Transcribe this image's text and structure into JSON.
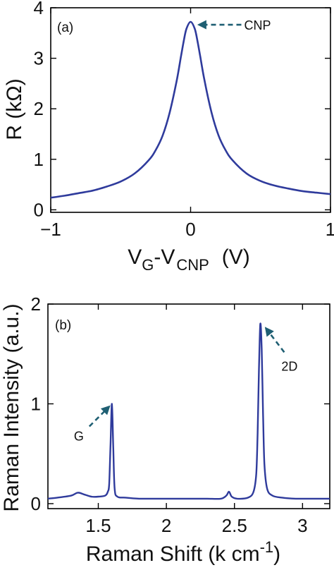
{
  "colors": {
    "series": "#2f3b9c",
    "arrow": "#1f5f73",
    "axis": "#000000"
  },
  "chart_data": [
    {
      "type": "line",
      "panel_label": "(a)",
      "xlabel_parts": [
        "V",
        "G",
        "-V",
        "CNP",
        "(V)"
      ],
      "ylabel": "R (kΩ)",
      "xlim": [
        -1,
        1
      ],
      "ylim": [
        -0.05,
        4
      ],
      "xticks": [
        -1,
        0,
        1
      ],
      "yticks": [
        0,
        1,
        2,
        3,
        4
      ],
      "series": [
        {
          "x": [
            -1.0,
            -0.9,
            -0.8,
            -0.7,
            -0.6,
            -0.5,
            -0.4,
            -0.3,
            -0.25,
            -0.2,
            -0.15,
            -0.1,
            -0.07,
            -0.05,
            -0.03,
            0.0,
            0.03,
            0.05,
            0.07,
            0.1,
            0.15,
            0.2,
            0.25,
            0.3,
            0.4,
            0.5,
            0.6,
            0.7,
            0.8,
            0.9,
            1.0
          ],
          "y": [
            0.24,
            0.28,
            0.33,
            0.38,
            0.46,
            0.56,
            0.72,
            0.98,
            1.18,
            1.47,
            1.92,
            2.55,
            3.02,
            3.33,
            3.58,
            3.72,
            3.58,
            3.33,
            3.02,
            2.55,
            1.92,
            1.47,
            1.18,
            0.98,
            0.72,
            0.57,
            0.48,
            0.42,
            0.37,
            0.34,
            0.31
          ]
        }
      ],
      "annotations": [
        {
          "text": "CNP",
          "x": 0.0,
          "y": 3.72
        }
      ]
    },
    {
      "type": "line",
      "panel_label": "(b)",
      "xlabel": "Raman Shift (k cm",
      "xlabel_sup": "-1",
      "xlabel_close": ")",
      "ylabel": "Raman Intensity (a.u.)",
      "xlim": [
        1.13,
        3.2
      ],
      "ylim": [
        -0.05,
        2
      ],
      "xticks": [
        1.5,
        2,
        2.5,
        3
      ],
      "xtick_labels": [
        "1.5",
        "2",
        "2.5",
        "3"
      ],
      "yticks": [
        0,
        1,
        2
      ],
      "series": [
        {
          "x": [
            1.13,
            1.2,
            1.3,
            1.35,
            1.4,
            1.45,
            1.5,
            1.55,
            1.57,
            1.58,
            1.59,
            1.6,
            1.61,
            1.62,
            1.64,
            1.7,
            1.8,
            1.9,
            2.0,
            2.1,
            2.2,
            2.3,
            2.4,
            2.44,
            2.46,
            2.48,
            2.52,
            2.6,
            2.64,
            2.66,
            2.67,
            2.68,
            2.69,
            2.7,
            2.71,
            2.72,
            2.74,
            2.78,
            2.85,
            2.95,
            3.05,
            3.15,
            3.2
          ],
          "y": [
            0.05,
            0.06,
            0.08,
            0.11,
            0.09,
            0.07,
            0.07,
            0.08,
            0.12,
            0.2,
            0.6,
            1.0,
            0.55,
            0.15,
            0.07,
            0.06,
            0.05,
            0.05,
            0.05,
            0.05,
            0.05,
            0.05,
            0.05,
            0.08,
            0.12,
            0.07,
            0.05,
            0.06,
            0.12,
            0.3,
            0.7,
            1.35,
            1.8,
            1.55,
            0.9,
            0.4,
            0.15,
            0.08,
            0.06,
            0.05,
            0.05,
            0.05,
            0.05
          ]
        }
      ],
      "annotations": [
        {
          "text": "G",
          "x": 1.6,
          "y": 1.0
        },
        {
          "text": "2D",
          "x": 2.7,
          "y": 1.8
        }
      ]
    }
  ]
}
